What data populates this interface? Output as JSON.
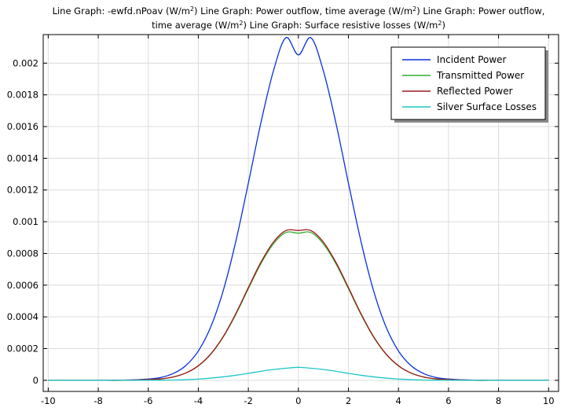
{
  "chart_data": {
    "type": "line",
    "title_lines": [
      [
        "Line Graph: -ewfd.nPoav (W/m",
        "2",
        ")  Line Graph: Power outflow, time average (W/m",
        "2",
        ")  Line Graph: Power outflow,"
      ],
      [
        "time average (W/m",
        "2",
        ")  Line Graph: Surface resistive losses (W/m",
        "2",
        ")"
      ]
    ],
    "xlim": [
      -10.2,
      10.4
    ],
    "ylim": [
      -7e-05,
      0.00218
    ],
    "x_ticks": [
      -10,
      -8,
      -6,
      -4,
      -2,
      0,
      2,
      4,
      6,
      8,
      10
    ],
    "x_tick_labels": [
      "-10",
      "-8",
      "-6",
      "-4",
      "-2",
      "0",
      "2",
      "4",
      "6",
      "8",
      "10"
    ],
    "y_ticks": [
      0,
      0.0002,
      0.0004,
      0.0006,
      0.0008,
      0.001,
      0.0012,
      0.0014,
      0.0016,
      0.0018,
      0.002
    ],
    "y_tick_labels": [
      "0",
      "0.0002",
      "0.0004",
      "0.0006",
      "0.0008",
      "0.001",
      "0.0012",
      "0.0014",
      "0.0016",
      "0.0018",
      "0.002"
    ],
    "grid": true,
    "legend_position": "top-right",
    "x": [
      -10,
      -9,
      -8,
      -7,
      -6,
      -5.5,
      -5,
      -4.5,
      -4,
      -3.5,
      -3,
      -2.5,
      -2,
      -1.5,
      -1,
      -0.5,
      0,
      0.5,
      1,
      1.5,
      2,
      2.5,
      3,
      3.5,
      4,
      4.5,
      5,
      5.5,
      6,
      7,
      8,
      9,
      10
    ],
    "series": [
      {
        "name": "Incident Power",
        "color": "#0a2fe0",
        "values": [
          0,
          0,
          0,
          1e-06,
          8e-06,
          1.8e-05,
          4.3e-05,
          9.3e-05,
          0.000185,
          0.000338,
          0.000568,
          0.000877,
          0.001244,
          0.001623,
          0.00195,
          0.00216,
          0.002052,
          0.00216,
          0.00195,
          0.001623,
          0.001244,
          0.000877,
          0.000568,
          0.000338,
          0.000185,
          9.3e-05,
          4.3e-05,
          1.8e-05,
          8e-06,
          1e-06,
          0,
          0,
          0
        ]
      },
      {
        "name": "Transmitted Power",
        "color": "#2fb02f",
        "values": [
          0,
          0,
          0,
          0,
          4e-06,
          9e-06,
          2.1e-05,
          4.6e-05,
          9.1e-05,
          0.000165,
          0.000274,
          0.000416,
          0.000578,
          0.000735,
          0.00086,
          0.000932,
          0.000928,
          0.000932,
          0.00086,
          0.000735,
          0.000578,
          0.000416,
          0.000274,
          0.000165,
          9.1e-05,
          4.6e-05,
          2.1e-05,
          9e-06,
          4e-06,
          0,
          0,
          0,
          0
        ]
      },
      {
        "name": "Reflected Power",
        "color": "#a01818",
        "values": [
          0,
          0,
          0,
          0,
          4e-06,
          9e-06,
          2.1e-05,
          4.6e-05,
          9.2e-05,
          0.000167,
          0.000277,
          0.000421,
          0.000585,
          0.000744,
          0.000871,
          0.000944,
          0.000945,
          0.000944,
          0.000871,
          0.000744,
          0.000585,
          0.000421,
          0.000277,
          0.000167,
          9.2e-05,
          4.6e-05,
          2.1e-05,
          9e-06,
          4e-06,
          0,
          0,
          0,
          0
        ]
      },
      {
        "name": "Silver Surface Losses",
        "color": "#1cc6c6",
        "values": [
          0,
          0,
          0,
          0,
          5e-07,
          1e-06,
          2e-06,
          4e-06,
          8e-06,
          1.4e-05,
          2.2e-05,
          3.2e-05,
          4.4e-05,
          5.7e-05,
          6.8e-05,
          7.6e-05,
          8.2e-05,
          7.6e-05,
          6.8e-05,
          5.7e-05,
          4.4e-05,
          3.2e-05,
          2.2e-05,
          1.4e-05,
          8e-06,
          4e-06,
          2e-06,
          1e-06,
          5e-07,
          0,
          0,
          0,
          0
        ]
      }
    ]
  }
}
